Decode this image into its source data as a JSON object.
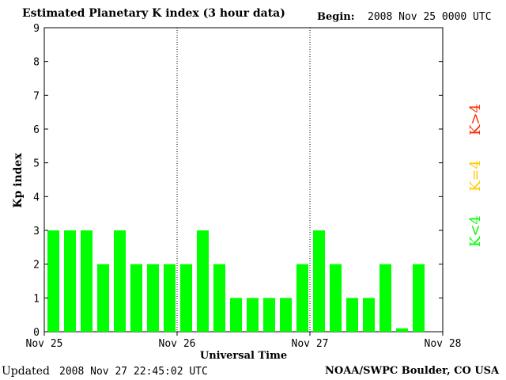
{
  "header": {
    "title": "Estimated Planetary K index (3 hour data)",
    "begin_label": "Begin:",
    "begin_value": "2008 Nov 25 0000 UTC"
  },
  "footer": {
    "updated_label": "Updated",
    "updated_value": "2008 Nov 27 22:45:02 UTC",
    "credit": "NOAA/SWPC Boulder, CO USA"
  },
  "legend": {
    "high": {
      "label": "K>4",
      "color": "#ff2a00"
    },
    "mid": {
      "label": "K=4",
      "color": "#ffcc00"
    },
    "low": {
      "label": "K<4",
      "color": "#00ff00"
    }
  },
  "chart_data": {
    "type": "bar",
    "title": "Estimated Planetary K index (3 hour data)",
    "xlabel": "Universal Time",
    "ylabel": "Kp index",
    "ylim": [
      0,
      9
    ],
    "yticks": [
      "0",
      "1",
      "2",
      "3",
      "4",
      "5",
      "6",
      "7",
      "8",
      "9"
    ],
    "xticks": [
      "Nov 25",
      "Nov 26",
      "Nov 27",
      "Nov 28"
    ],
    "bar_color": "#00ff00",
    "categories": [
      "Nov 25 00",
      "Nov 25 03",
      "Nov 25 06",
      "Nov 25 09",
      "Nov 25 12",
      "Nov 25 15",
      "Nov 25 18",
      "Nov 25 21",
      "Nov 26 00",
      "Nov 26 03",
      "Nov 26 06",
      "Nov 26 09",
      "Nov 26 12",
      "Nov 26 15",
      "Nov 26 18",
      "Nov 26 21",
      "Nov 27 00",
      "Nov 27 03",
      "Nov 27 06",
      "Nov 27 09",
      "Nov 27 12",
      "Nov 27 15",
      "Nov 27 18",
      "Nov 27 21"
    ],
    "values": [
      3,
      3,
      3,
      2,
      3,
      2,
      2,
      2,
      2,
      3,
      2,
      1,
      1,
      1,
      1,
      2,
      3,
      2,
      1,
      1,
      2,
      0.1,
      2,
      0
    ]
  }
}
